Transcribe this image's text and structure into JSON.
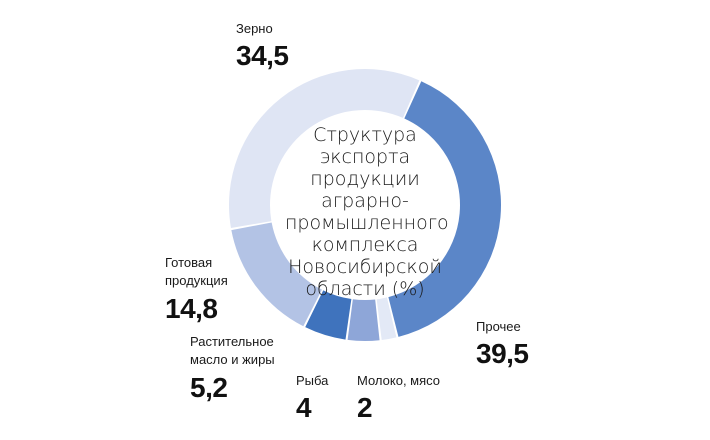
{
  "chart_data": {
    "type": "pie",
    "title": "Структура\nэкспорта\nпродукции\nаграрно-\nпромышленного\nкомплекса\nНовосибирской\nобласти (%)",
    "slices": [
      {
        "name": "Прочее",
        "value": 39.5,
        "display": "39,5",
        "color": "#5b86c8"
      },
      {
        "name": "Молоко, мясо",
        "value": 2,
        "display": "2",
        "color": "#e3e9f6"
      },
      {
        "name": "Рыба",
        "value": 4,
        "display": "4",
        "color": "#8ea6d8"
      },
      {
        "name": "Растительное масло и жиры",
        "value": 5.2,
        "display": "5,2",
        "color": "#3f73bd"
      },
      {
        "name": "Готовая продукция",
        "value": 14.8,
        "display": "14,8",
        "color": "#b3c3e5"
      },
      {
        "name": "Зерно",
        "value": 34.5,
        "display": "34,5",
        "color": "#dfe5f4"
      }
    ]
  },
  "labels": {
    "prochee": {
      "name": "Прочее",
      "value": "39,5"
    },
    "moloko": {
      "name": "Молоко, мясо",
      "value": "2"
    },
    "ryba": {
      "name": "Рыба",
      "value": "4"
    },
    "maslo": {
      "name": "Растительное\nмасло и жиры",
      "value": "5,2"
    },
    "gotovaya": {
      "name": "Готовая\nпродукция",
      "value": "14,8"
    },
    "zerno": {
      "name": "Зерно",
      "value": "34,5"
    }
  }
}
